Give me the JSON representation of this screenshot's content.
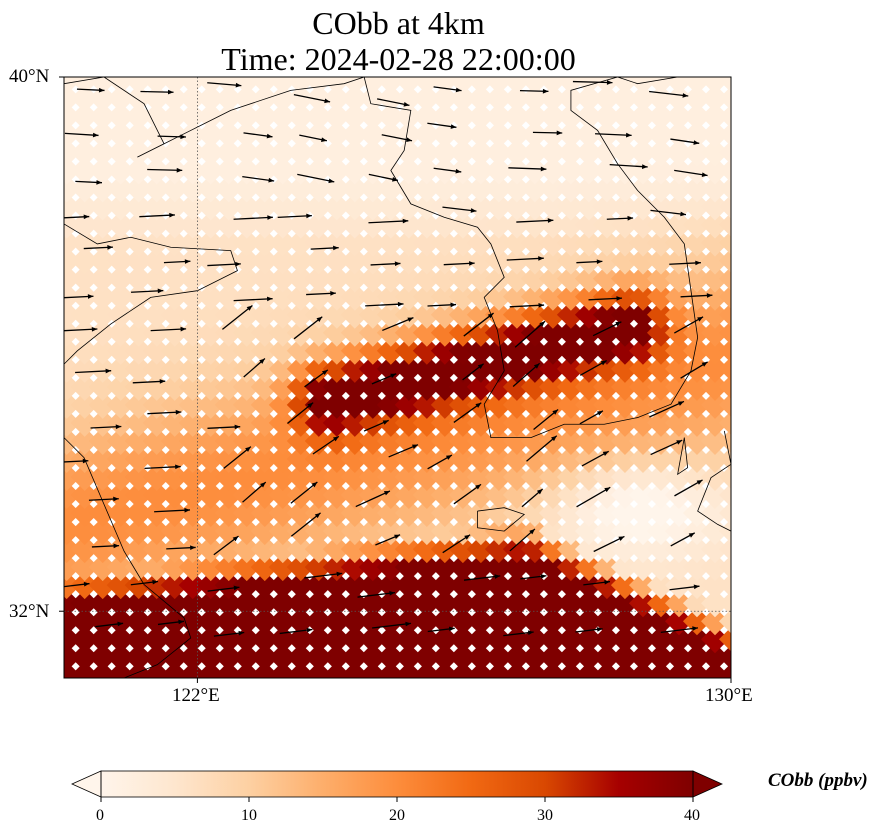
{
  "title": {
    "line1": "CObb at 4km",
    "line2": "Time: 2024-02-28 22:00:00"
  },
  "map": {
    "lon_min": 120,
    "lon_max": 130,
    "lat_min": 31,
    "lat_max": 40,
    "lat_labels": [
      {
        "text": "40°N",
        "lat": 40
      },
      {
        "text": "32°N",
        "lat": 32
      }
    ],
    "lon_labels": [
      {
        "text": "122°E",
        "lon": 122
      },
      {
        "text": "130°E",
        "lon": 130
      }
    ],
    "gridlines": {
      "lons": [
        122
      ],
      "lats": [
        32
      ],
      "style": "dotted"
    },
    "plume": {
      "description_source": "CO concentration field, ppbv",
      "background": 6,
      "southern_band": 40,
      "core_ridge_peak": 40
    }
  },
  "colorbar": {
    "label": "CObb (ppbv)",
    "min": 0,
    "max": 40,
    "ticks": [
      0,
      10,
      20,
      30,
      40
    ],
    "extend": "both",
    "colormap": [
      "#fff5eb",
      "#fee6ce",
      "#fdd0a2",
      "#fdae6b",
      "#fd8d3c",
      "#f16913",
      "#d94801",
      "#a60000",
      "#7f0000"
    ]
  }
}
